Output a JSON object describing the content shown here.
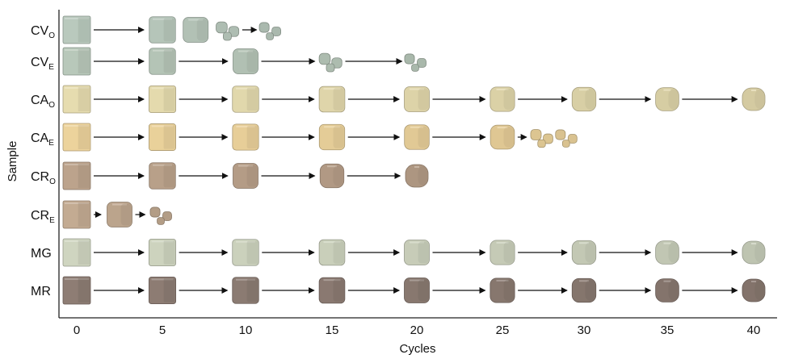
{
  "axes": {
    "x_title": "Cycles",
    "y_title": "Sample",
    "x_ticks": [
      "0",
      "5",
      "10",
      "15",
      "20",
      "25",
      "30",
      "35",
      "40"
    ]
  },
  "rows": [
    {
      "label": "CV",
      "sub": "O",
      "color": "#b9c9bd",
      "stages": [
        0,
        5,
        7,
        9,
        11.5
      ]
    },
    {
      "label": "CV",
      "sub": "E",
      "color": "#b8c8ba",
      "stages": [
        0,
        5,
        10,
        15,
        20
      ]
    },
    {
      "label": "CA",
      "sub": "O",
      "color": "#e6dcaf",
      "stages": [
        0,
        5,
        10,
        15,
        20,
        25,
        30,
        35,
        40
      ]
    },
    {
      "label": "CA",
      "sub": "E",
      "color": "#ecd39c",
      "stages": [
        0,
        5,
        10,
        15,
        20,
        25,
        27.5,
        29
      ]
    },
    {
      "label": "CR",
      "sub": "O",
      "color": "#bca38c",
      "stages": [
        0,
        5,
        10,
        15,
        20
      ]
    },
    {
      "label": "CR",
      "sub": "E",
      "color": "#c3ab92",
      "stages": [
        0,
        2.5,
        5
      ]
    },
    {
      "label": "MG",
      "sub": "",
      "color": "#cfd5c0",
      "stages": [
        0,
        5,
        10,
        15,
        20,
        25,
        30,
        35,
        40
      ]
    },
    {
      "label": "MR",
      "sub": "",
      "color": "#8e7d74",
      "stages": [
        0,
        5,
        10,
        15,
        20,
        25,
        30,
        35,
        40
      ]
    }
  ]
}
